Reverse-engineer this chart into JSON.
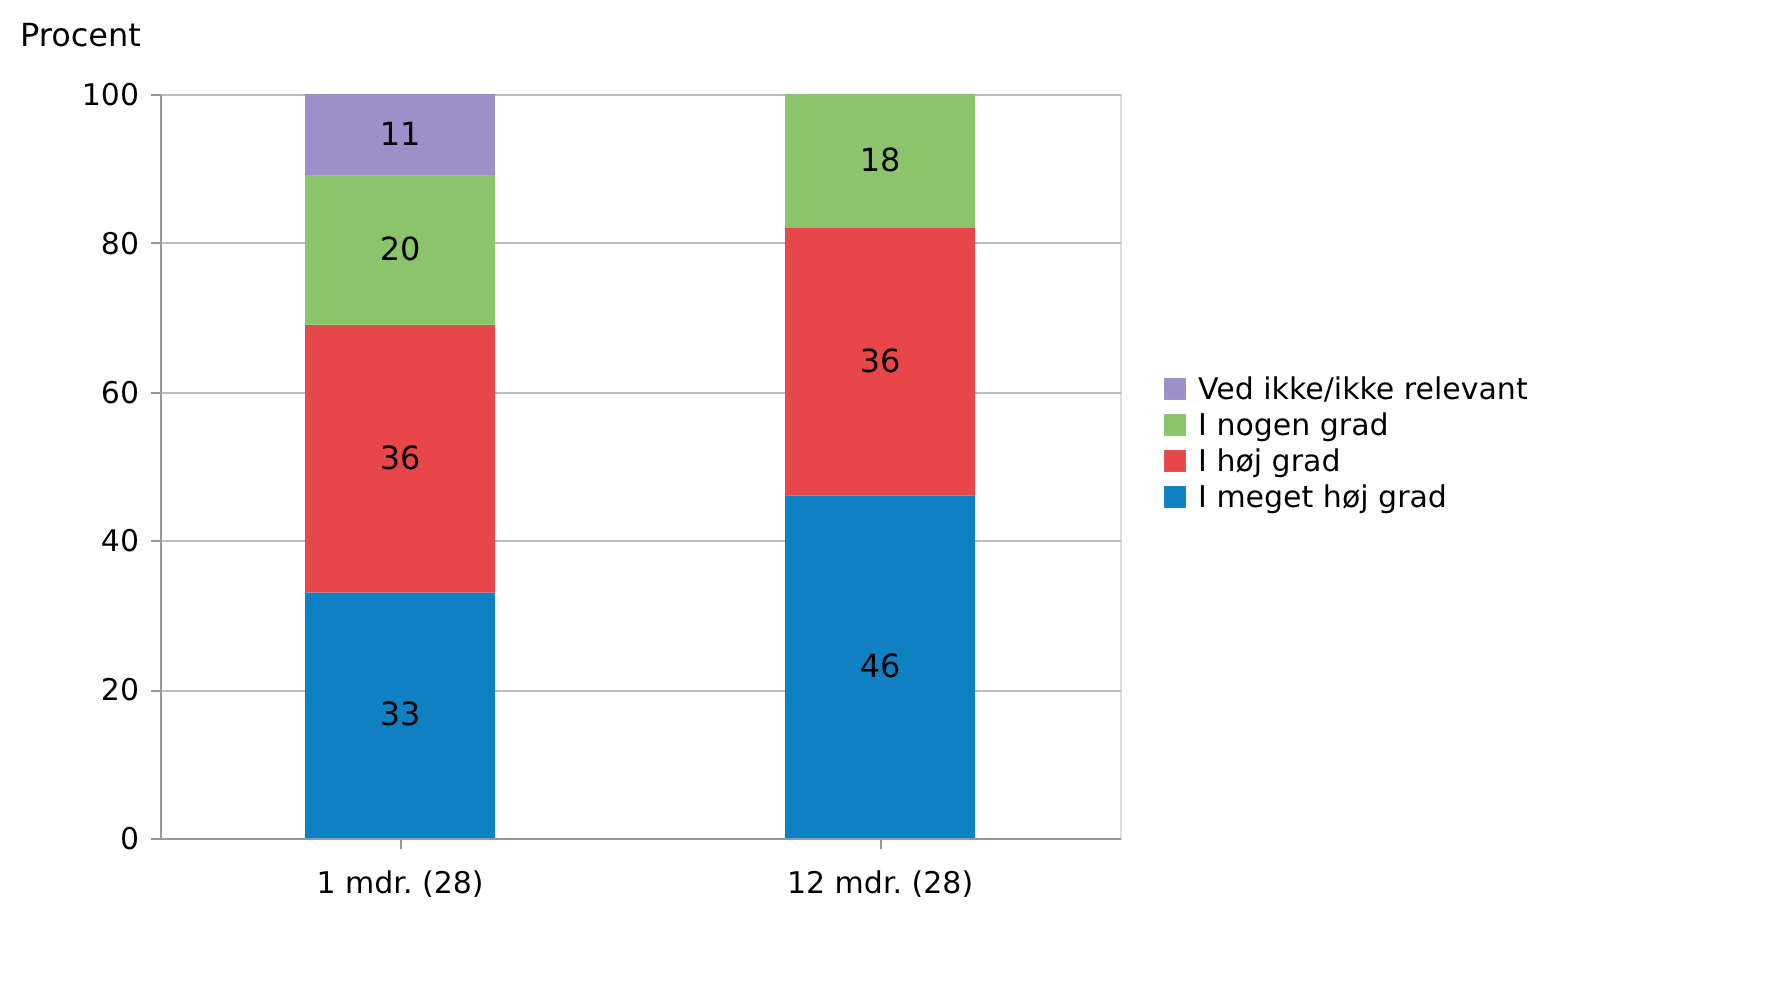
{
  "chart_data": {
    "type": "bar",
    "stacked": true,
    "ylabel": "Procent",
    "categories": [
      "1 mdr. (28)",
      "12 mdr. (28)"
    ],
    "series": [
      {
        "name": "I meget høj grad",
        "color": "#0f80c1",
        "values": [
          33,
          46
        ]
      },
      {
        "name": "I høj grad",
        "color": "#e8474a",
        "values": [
          36,
          36
        ]
      },
      {
        "name": "I nogen grad",
        "color": "#8cc46c",
        "values": [
          20,
          18
        ]
      },
      {
        "name": "Ved ikke/ikke relevant",
        "color": "#9d8fca",
        "values": [
          11,
          null
        ]
      }
    ],
    "ylim": [
      0,
      100
    ],
    "yticks": [
      0,
      20,
      40,
      60,
      80,
      100
    ],
    "grid": "y",
    "legend": "right",
    "data_labels": true
  }
}
